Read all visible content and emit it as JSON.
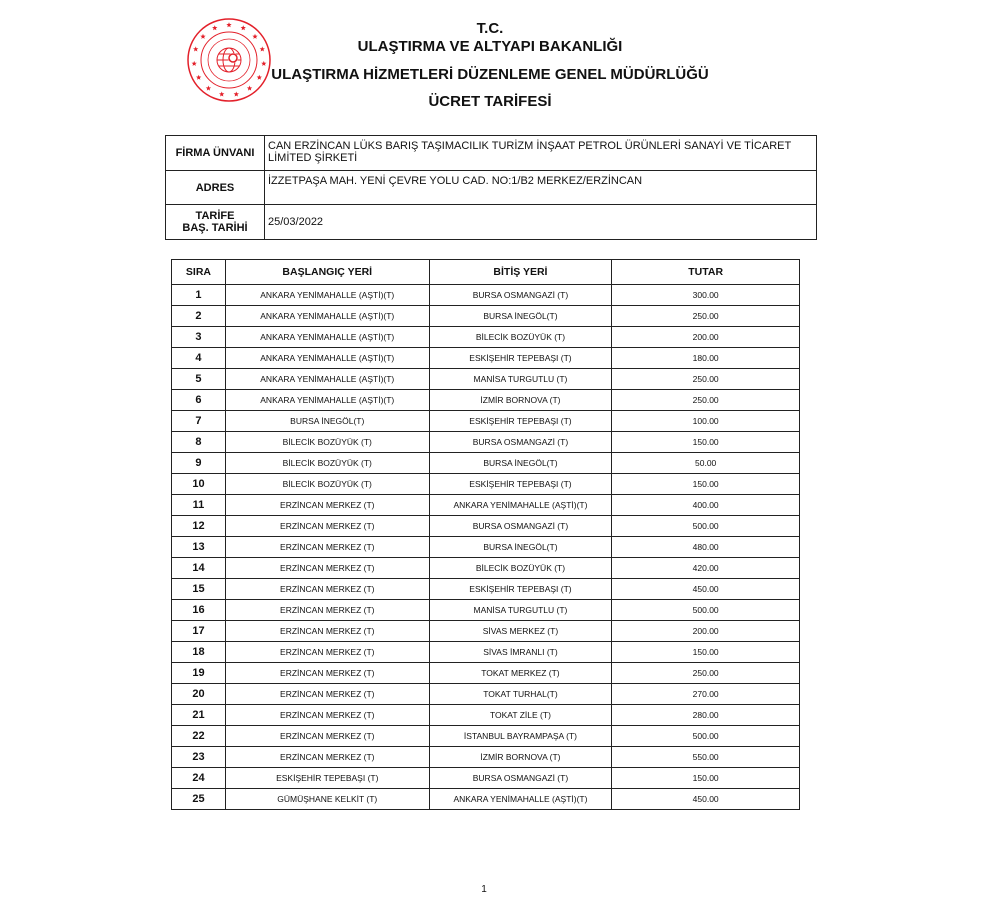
{
  "logo": {
    "name": "ministry-seal",
    "text": "TÜRKİYE CUMHURİYETİ ULAŞTIRMA VE ALTYAPI BAKANLIĞI",
    "color": "#e3202a"
  },
  "header": {
    "line1": "T.C.",
    "line2": "ULAŞTIRMA VE ALTYAPI BAKANLIĞI",
    "line3": "ULAŞTIRMA HİZMETLERİ DÜZENLEME GENEL MÜDÜRLÜĞÜ",
    "line4": "ÜCRET TARİFESİ"
  },
  "info": {
    "firm_label": "FİRMA ÜNVANI",
    "firm_value": "CAN ERZİNCAN LÜKS BARIŞ TAŞIMACILIK TURİZM İNŞAAT PETROL ÜRÜNLERİ SANAYİ VE TİCARET LİMİTED ŞİRKETİ",
    "address_label": "ADRES",
    "address_value": "İZZETPAŞA MAH. YENİ ÇEVRE YOLU CAD. NO:1/B2 MERKEZ/ERZİNCAN",
    "date_label_1": "TARİFE",
    "date_label_2": "BAŞ. TARİHİ",
    "date_value": "25/03/2022"
  },
  "table": {
    "headers": [
      "SIRA",
      "BAŞLANGIÇ YERİ",
      "BİTİŞ YERİ",
      "TUTAR"
    ],
    "rows": [
      [
        "1",
        "ANKARA YENİMAHALLE (AŞTİ)(T)",
        "BURSA OSMANGAZİ (T)",
        "300.00"
      ],
      [
        "2",
        "ANKARA YENİMAHALLE (AŞTİ)(T)",
        "BURSA İNEGÖL(T)",
        "250.00"
      ],
      [
        "3",
        "ANKARA YENİMAHALLE (AŞTİ)(T)",
        "BİLECİK BOZÜYÜK (T)",
        "200.00"
      ],
      [
        "4",
        "ANKARA YENİMAHALLE (AŞTİ)(T)",
        "ESKİŞEHİR TEPEBAŞI (T)",
        "180.00"
      ],
      [
        "5",
        "ANKARA YENİMAHALLE (AŞTİ)(T)",
        "MANİSA TURGUTLU (T)",
        "250.00"
      ],
      [
        "6",
        "ANKARA YENİMAHALLE (AŞTİ)(T)",
        "İZMİR BORNOVA (T)",
        "250.00"
      ],
      [
        "7",
        "BURSA İNEGÖL(T)",
        "ESKİŞEHİR TEPEBAŞI (T)",
        "100.00"
      ],
      [
        "8",
        "BİLECİK BOZÜYÜK (T)",
        "BURSA OSMANGAZİ (T)",
        "150.00"
      ],
      [
        "9",
        "BİLECİK BOZÜYÜK (T)",
        "BURSA İNEGÖL(T)",
        "50.00"
      ],
      [
        "10",
        "BİLECİK BOZÜYÜK (T)",
        "ESKİŞEHİR TEPEBAŞI (T)",
        "150.00"
      ],
      [
        "11",
        "ERZİNCAN MERKEZ (T)",
        "ANKARA YENİMAHALLE (AŞTİ)(T)",
        "400.00"
      ],
      [
        "12",
        "ERZİNCAN MERKEZ (T)",
        "BURSA OSMANGAZİ (T)",
        "500.00"
      ],
      [
        "13",
        "ERZİNCAN MERKEZ (T)",
        "BURSA İNEGÖL(T)",
        "480.00"
      ],
      [
        "14",
        "ERZİNCAN MERKEZ (T)",
        "BİLECİK BOZÜYÜK (T)",
        "420.00"
      ],
      [
        "15",
        "ERZİNCAN MERKEZ (T)",
        "ESKİŞEHİR TEPEBAŞI (T)",
        "450.00"
      ],
      [
        "16",
        "ERZİNCAN MERKEZ (T)",
        "MANİSA TURGUTLU (T)",
        "500.00"
      ],
      [
        "17",
        "ERZİNCAN MERKEZ (T)",
        "SİVAS MERKEZ (T)",
        "200.00"
      ],
      [
        "18",
        "ERZİNCAN MERKEZ (T)",
        "SİVAS İMRANLI (T)",
        "150.00"
      ],
      [
        "19",
        "ERZİNCAN MERKEZ (T)",
        "TOKAT MERKEZ (T)",
        "250.00"
      ],
      [
        "20",
        "ERZİNCAN MERKEZ (T)",
        "TOKAT TURHAL(T)",
        "270.00"
      ],
      [
        "21",
        "ERZİNCAN MERKEZ (T)",
        "TOKAT ZİLE (T)",
        "280.00"
      ],
      [
        "22",
        "ERZİNCAN MERKEZ (T)",
        "İSTANBUL BAYRAMPAŞA (T)",
        "500.00"
      ],
      [
        "23",
        "ERZİNCAN MERKEZ (T)",
        "İZMİR BORNOVA (T)",
        "550.00"
      ],
      [
        "24",
        "ESKİŞEHİR TEPEBAŞI (T)",
        "BURSA OSMANGAZİ (T)",
        "150.00"
      ],
      [
        "25",
        "GÜMÜŞHANE KELKİT (T)",
        "ANKARA YENİMAHALLE (AŞTİ)(T)",
        "450.00"
      ]
    ]
  },
  "footer": {
    "page_number": "1"
  }
}
